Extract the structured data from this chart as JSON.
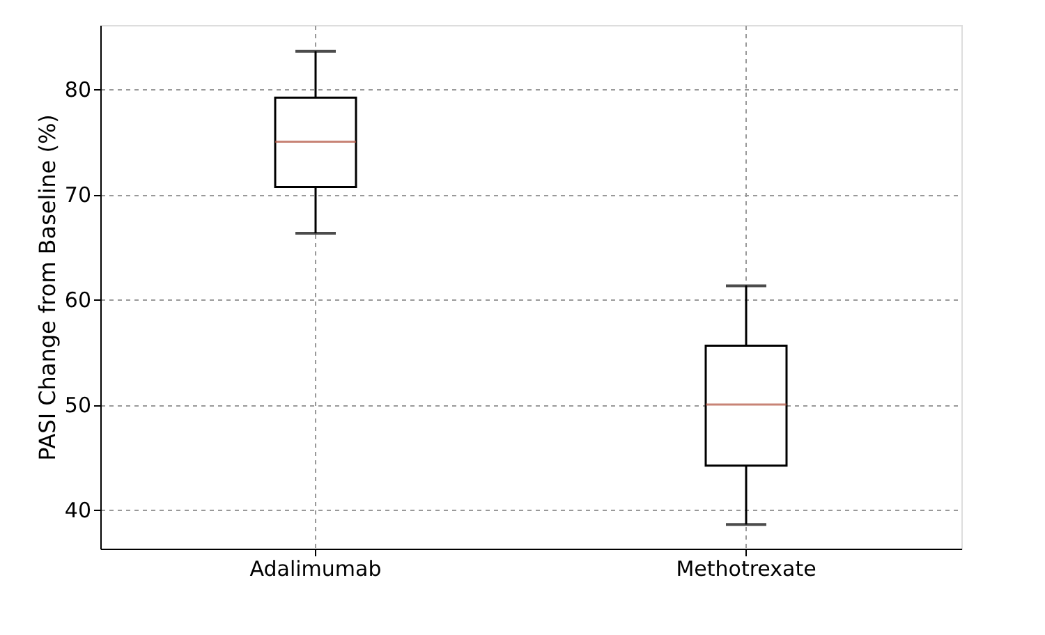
{
  "chart_data": {
    "type": "box",
    "ylabel": "PASI Change from Baseline (%)",
    "categories": [
      "Adalimumab",
      "Methotrexate"
    ],
    "boxes": [
      {
        "low": 66.3,
        "q1": 70.7,
        "median": 75,
        "q3": 79.2,
        "high": 83.6
      },
      {
        "low": 38.6,
        "q1": 44.2,
        "median": 50,
        "q3": 55.6,
        "high": 61.3
      }
    ],
    "ylim": [
      36.3,
      86.1
    ],
    "yticks": [
      40,
      50,
      60,
      70,
      80
    ],
    "grid": true
  }
}
